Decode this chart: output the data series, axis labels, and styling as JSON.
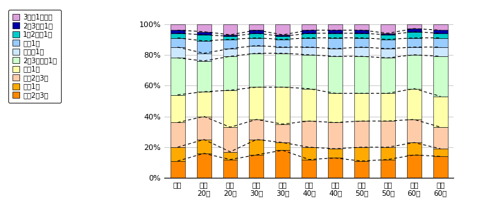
{
  "categories": [
    "全体",
    "男性\n20代",
    "女性\n20代",
    "男性\n30代",
    "女性\n30代",
    "男性\n40代",
    "女性\n40代",
    "男性\n50代",
    "女性\n50代",
    "男性\n60代",
    "女性\n60代"
  ],
  "legend_labels": [
    "3年に1回未満",
    "2～3年に1回",
    "1～2年に1回",
    "年に1回",
    "半年に1回",
    "2～3カ月に1回",
    "月に1回",
    "月に2～3回",
    "週に1回",
    "週に2～3回"
  ],
  "colors": [
    "#dda0dd",
    "#0000aa",
    "#00cccc",
    "#99ccff",
    "#cce8ff",
    "#ccffcc",
    "#ffffaa",
    "#ffccaa",
    "#ffaa00",
    "#ff8800"
  ],
  "data": [
    [
      4,
      5,
      7,
      4,
      7,
      4,
      4,
      4,
      6,
      3,
      4
    ],
    [
      2,
      2,
      1,
      2,
      1,
      2,
      2,
      2,
      1,
      2,
      2
    ],
    [
      3,
      4,
      2,
      3,
      2,
      3,
      3,
      3,
      3,
      4,
      3
    ],
    [
      6,
      8,
      6,
      5,
      5,
      6,
      7,
      6,
      6,
      6,
      6
    ],
    [
      7,
      5,
      5,
      5,
      4,
      5,
      5,
      6,
      6,
      5,
      6
    ],
    [
      24,
      20,
      22,
      22,
      22,
      22,
      24,
      24,
      23,
      22,
      26
    ],
    [
      18,
      16,
      24,
      21,
      24,
      21,
      19,
      18,
      18,
      20,
      20
    ],
    [
      16,
      15,
      16,
      13,
      12,
      17,
      17,
      17,
      17,
      15,
      14
    ],
    [
      9,
      9,
      5,
      10,
      5,
      8,
      6,
      9,
      8,
      8,
      5
    ],
    [
      11,
      16,
      12,
      15,
      18,
      12,
      13,
      11,
      12,
      15,
      14
    ]
  ],
  "ylim": [
    0,
    100
  ],
  "yticks": [
    0,
    20,
    40,
    60,
    80,
    100
  ],
  "ytick_labels": [
    "0%",
    "20%",
    "40%",
    "60%",
    "80%",
    "100%"
  ],
  "bar_width": 0.55,
  "background_color": "#ffffff",
  "grid_color": "#cccccc"
}
